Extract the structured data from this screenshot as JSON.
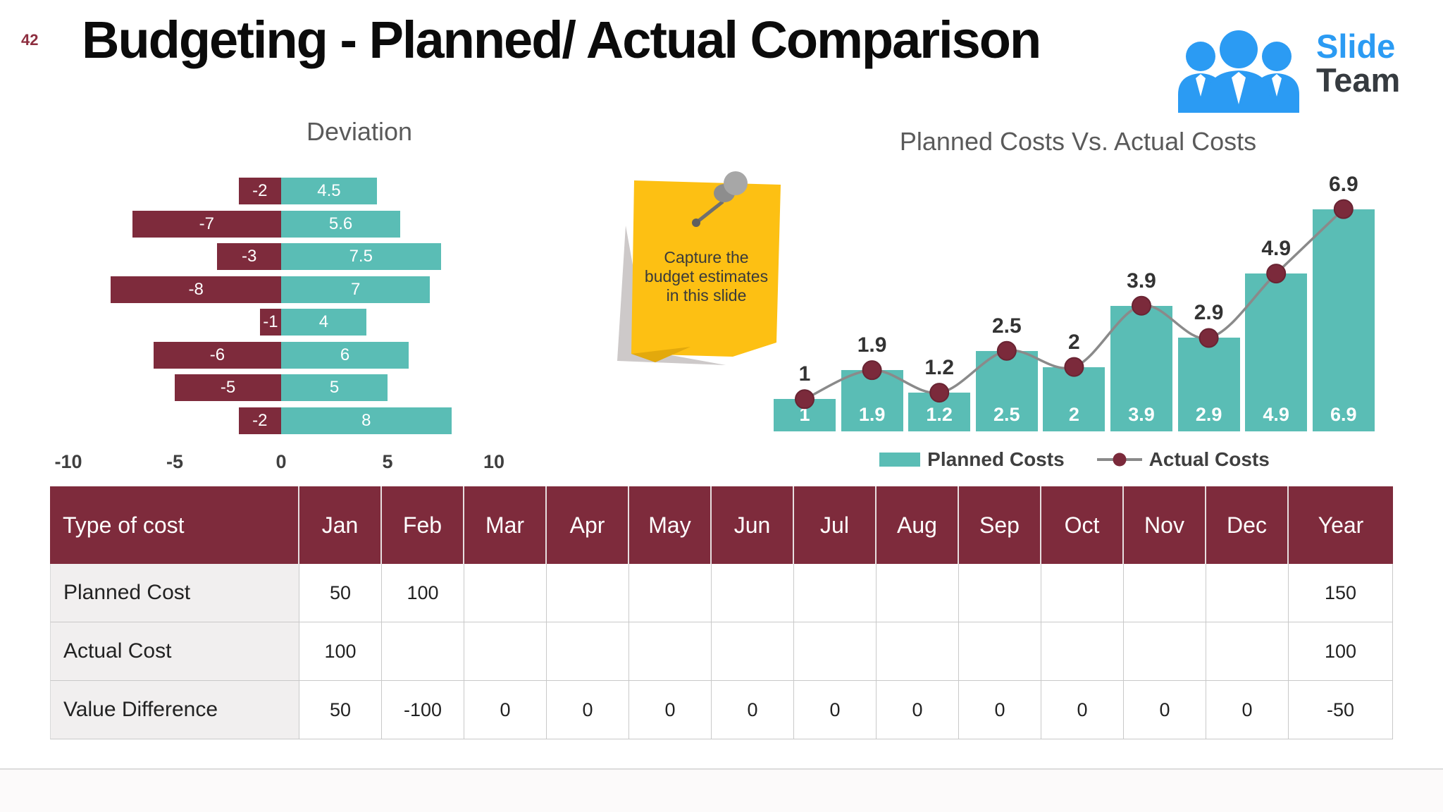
{
  "page": {
    "number": "42",
    "title": "Budgeting - Planned/ Actual Comparison"
  },
  "logo": {
    "line1": "Slide",
    "line2": "Team",
    "blue": "#2b9bf3",
    "dark": "#363b40"
  },
  "note": {
    "lines": [
      "Capture the",
      "budget estimates",
      "in this slide"
    ],
    "color": "#fdc013"
  },
  "colors": {
    "maroon": "#7e2b3c",
    "teal": "#5abdb5",
    "grid": "#c9c9c9",
    "line": "#8a8a8a",
    "label_dark": "#3f3f3f",
    "yellow": "#fdc013"
  },
  "chart_data": [
    {
      "type": "bar",
      "orientation": "horizontal",
      "title": "Deviation",
      "series": [
        {
          "name": "negative-deviation",
          "color": "#7e2b3c",
          "values": [
            -2,
            -7,
            -3,
            -8,
            -1,
            -6,
            -5,
            -2
          ]
        },
        {
          "name": "positive-deviation",
          "color": "#5abdb5",
          "values": [
            4.5,
            5.6,
            7.5,
            7,
            4,
            6,
            5,
            8
          ]
        }
      ],
      "xlim": [
        -10,
        10
      ],
      "x_ticks": [
        -10,
        -5,
        0,
        5,
        10
      ],
      "grid": false
    },
    {
      "type": "bar",
      "title": "Planned Costs Vs. Actual Costs",
      "series": [
        {
          "name": "Planned Costs",
          "type": "bar",
          "color": "#5abdb5",
          "values": [
            1,
            1.9,
            1.2,
            2.5,
            2,
            3.9,
            2.9,
            4.9,
            6.9
          ]
        },
        {
          "name": "Actual Costs",
          "type": "line",
          "color": "#7b2a3b",
          "values": [
            1,
            1.9,
            1.2,
            2.5,
            2,
            3.9,
            2.9,
            4.9,
            6.9
          ]
        }
      ],
      "legend": [
        "Planned Costs",
        "Actual Costs"
      ],
      "legend_position": "bottom",
      "ylim": [
        0,
        7
      ]
    },
    {
      "type": "table",
      "columns": [
        "Type of cost",
        "Jan",
        "Feb",
        "Mar",
        "Apr",
        "May",
        "Jun",
        "Jul",
        "Aug",
        "Sep",
        "Oct",
        "Nov",
        "Dec",
        "Year"
      ],
      "rows": [
        {
          "label": "Planned Cost",
          "values": [
            "50",
            "100",
            "",
            "",
            "",
            "",
            "",
            "",
            "",
            "",
            "",
            "",
            "150"
          ]
        },
        {
          "label": "Actual Cost",
          "values": [
            "100",
            "",
            "",
            "",
            "",
            "",
            "",
            "",
            "",
            "",
            "",
            "",
            "100"
          ]
        },
        {
          "label": "Value Difference",
          "values": [
            "50",
            "-100",
            "0",
            "0",
            "0",
            "0",
            "0",
            "0",
            "0",
            "0",
            "0",
            "0",
            "-50"
          ]
        }
      ]
    }
  ]
}
